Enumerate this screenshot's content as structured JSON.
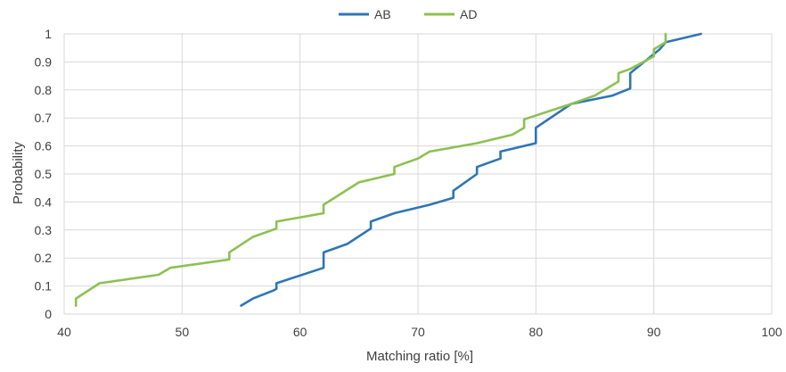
{
  "chart_data": {
    "type": "line",
    "title": "",
    "xlabel": "Matching ratio [%]",
    "ylabel": "Probability",
    "xlim": [
      40,
      100
    ],
    "ylim": [
      0,
      1
    ],
    "x_ticks": [
      "40",
      "50",
      "60",
      "70",
      "80",
      "90",
      "100"
    ],
    "y_ticks": [
      "0",
      "0.1",
      "0.2",
      "0.3",
      "0.4",
      "0.5",
      "0.6",
      "0.7",
      "0.8",
      "0.9",
      "1"
    ],
    "grid": true,
    "legend_position": "top-center",
    "series": [
      {
        "name": "AB",
        "color": "#2e75b6",
        "x": [
          55,
          56,
          57.8,
          58,
          58,
          62,
          62,
          64,
          66,
          66,
          68,
          71,
          73,
          73,
          75,
          75,
          77,
          77,
          80,
          80,
          83,
          86.5,
          88,
          88,
          90.5,
          91,
          94
        ],
        "y": [
          0.03,
          0.055,
          0.085,
          0.09,
          0.11,
          0.165,
          0.22,
          0.25,
          0.305,
          0.33,
          0.36,
          0.39,
          0.415,
          0.44,
          0.5,
          0.525,
          0.555,
          0.58,
          0.61,
          0.665,
          0.75,
          0.78,
          0.805,
          0.86,
          0.945,
          0.97,
          1.0
        ]
      },
      {
        "name": "AD",
        "color": "#8cc152",
        "x": [
          41,
          41,
          43,
          48,
          49,
          54,
          54,
          56,
          58,
          58,
          62,
          62,
          65,
          68,
          68,
          70,
          71,
          75,
          78,
          79,
          79,
          83,
          85,
          87,
          87,
          88,
          90,
          90,
          91,
          91
        ],
        "y": [
          0.03,
          0.055,
          0.11,
          0.14,
          0.165,
          0.195,
          0.22,
          0.275,
          0.305,
          0.33,
          0.36,
          0.39,
          0.47,
          0.5,
          0.525,
          0.555,
          0.58,
          0.61,
          0.64,
          0.665,
          0.695,
          0.75,
          0.78,
          0.83,
          0.86,
          0.875,
          0.92,
          0.945,
          0.97,
          1.0
        ]
      }
    ]
  }
}
